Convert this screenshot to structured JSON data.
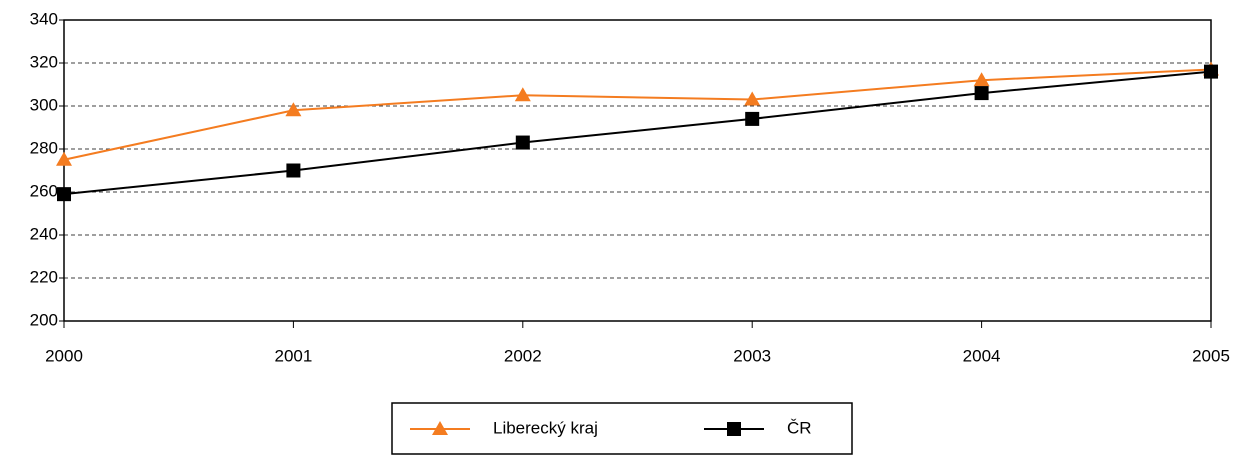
{
  "chart_data": {
    "type": "line",
    "x": [
      2000,
      2001,
      2002,
      2003,
      2004,
      2005
    ],
    "xlim": [
      2000,
      2005
    ],
    "xticks": [
      2000,
      2001,
      2002,
      2003,
      2004,
      2005
    ],
    "ylim": [
      200,
      340
    ],
    "yticks": [
      200,
      220,
      240,
      260,
      280,
      300,
      320,
      340
    ],
    "grid": true,
    "legend": "bottom",
    "series": [
      {
        "name": "Liberecký kraj",
        "color": "#f47c20",
        "marker": "triangle",
        "values": [
          275,
          298,
          305,
          303,
          312,
          317
        ]
      },
      {
        "name": "ČR",
        "color": "#000000",
        "marker": "square",
        "values": [
          259,
          270,
          283,
          294,
          306,
          316
        ]
      }
    ]
  }
}
